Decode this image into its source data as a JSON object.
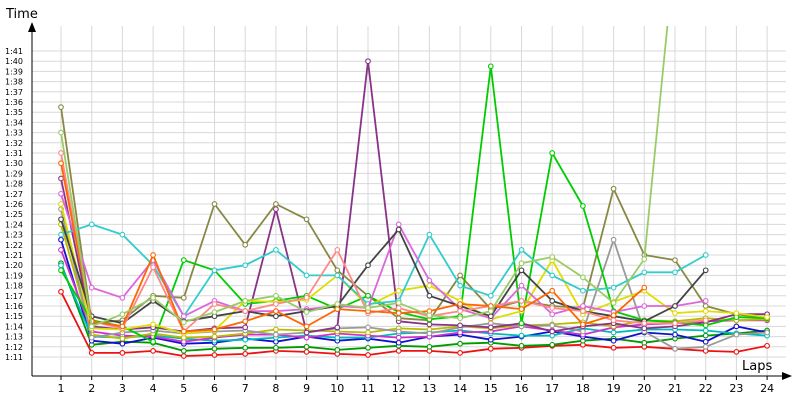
{
  "chart_data": {
    "type": "line",
    "title": "",
    "xlabel": "Laps",
    "ylabel": "Time",
    "grid": true,
    "x_ticks": [
      "1",
      "2",
      "3",
      "4",
      "5",
      "6",
      "7",
      "8",
      "9",
      "10",
      "11",
      "12",
      "13",
      "14",
      "15",
      "16",
      "17",
      "18",
      "19",
      "20",
      "21",
      "22",
      "23",
      "24"
    ],
    "y_ticks": [
      "1:11",
      "1:12",
      "1:13",
      "1:14",
      "1:15",
      "1:16",
      "1:17",
      "1:18",
      "1:19",
      "1:20",
      "1:21",
      "1:22",
      "1:23",
      "1:24",
      "1:25",
      "1:26",
      "1:27",
      "1:28",
      "1:29",
      "1:30",
      "1:31",
      "1:32",
      "1:33",
      "1:34",
      "1:35",
      "1:36",
      "1:37",
      "1:38",
      "1:39",
      "1:40",
      "1:41"
    ],
    "ylim_seconds": [
      70,
      112
    ],
    "series": [
      {
        "color": "#ee1111",
        "values": [
          77.4,
          71.4,
          71.4,
          71.6,
          71.1,
          71.2,
          71.3,
          71.6,
          71.5,
          71.3,
          71.2,
          71.6,
          71.6,
          71.4,
          71.8,
          71.9,
          72.1,
          72.2,
          71.9,
          72.0,
          71.8,
          71.6,
          71.5,
          72.1
        ]
      },
      {
        "color": "#009900",
        "values": [
          80.2,
          72.2,
          72.5,
          72.4,
          71.6,
          71.8,
          71.9,
          71.9,
          72.0,
          71.7,
          71.9,
          72.1,
          72.0,
          72.3,
          72.4,
          72.1,
          72.2,
          72.6,
          72.8,
          72.4,
          72.8,
          73.1,
          73.3,
          73.6
        ]
      },
      {
        "color": "#1111cc",
        "values": [
          82.5,
          72.6,
          72.3,
          72.9,
          72.3,
          72.4,
          72.8,
          72.5,
          73.0,
          72.6,
          72.8,
          72.4,
          73.0,
          73.2,
          72.7,
          73.0,
          73.5,
          73.0,
          72.6,
          73.4,
          73.2,
          72.5,
          74.0,
          73.4
        ]
      },
      {
        "color": "#00bbbb",
        "values": [
          80.0,
          73.0,
          72.9,
          73.1,
          72.8,
          72.6,
          72.7,
          72.9,
          73.1,
          72.9,
          72.9,
          73.3,
          73.4,
          73.6,
          73.3,
          73.1,
          73.1,
          73.8,
          73.4,
          73.7,
          73.7,
          73.6,
          73.3,
          73.1
        ]
      },
      {
        "color": "#cc33cc",
        "values": [
          81.5,
          73.5,
          73.1,
          73.0,
          72.5,
          72.9,
          73.2,
          73.2,
          72.9,
          73.3,
          73.1,
          72.9,
          73.0,
          73.4,
          73.5,
          74.0,
          73.6,
          73.2,
          73.9,
          74.2,
          74.3,
          74.5,
          74.6,
          74.6
        ]
      },
      {
        "color": "#bbbb00",
        "values": [
          84.0,
          73.2,
          72.8,
          73.3,
          72.9,
          73.0,
          73.3,
          73.7,
          73.6,
          73.5,
          73.4,
          73.8,
          73.7,
          74.0,
          73.8,
          74.1,
          74.2,
          74.4,
          74.0,
          74.6,
          74.5,
          74.8,
          74.6,
          74.7
        ]
      },
      {
        "color": "#999999",
        "values": [
          85.5,
          72.9,
          73.4,
          73.6,
          73.3,
          73.5,
          73.6,
          73.2,
          73.4,
          73.8,
          73.9,
          73.5,
          73.3,
          73.9,
          74.3,
          74.0,
          74.1,
          73.5,
          82.5,
          73.5,
          71.8,
          72.0,
          73.2,
          73.4
        ]
      },
      {
        "color": "#883388",
        "values": [
          88.5,
          74.0,
          73.7,
          73.9,
          73.5,
          73.8,
          73.9,
          85.5,
          73.4,
          73.9,
          100.0,
          74.5,
          74.2,
          74.1,
          73.9,
          74.3,
          73.5,
          74.0,
          74.3,
          73.8,
          74.0,
          74.4,
          75.2,
          75.2
        ]
      },
      {
        "color": "#888844",
        "values": [
          95.5,
          74.3,
          74.6,
          77.0,
          76.8,
          86.0,
          82.0,
          86.0,
          84.5,
          79.5,
          77.0,
          74.8,
          74.6,
          79.0,
          75.7,
          76.5,
          76.0,
          75.8,
          87.5,
          81.0,
          80.5,
          76.0,
          75.2,
          74.8
        ]
      },
      {
        "color": "#00cc00",
        "values": [
          79.5,
          74.6,
          74.0,
          72.5,
          80.5,
          79.5,
          76.2,
          76.5,
          77.0,
          75.7,
          77.0,
          75.4,
          74.7,
          75.0,
          99.5,
          74.3,
          91.0,
          85.8,
          75.5,
          74.6,
          74.4,
          74.1,
          74.9,
          74.8
        ]
      },
      {
        "color": "#dddd00",
        "values": [
          86.0,
          73.8,
          73.7,
          74.2,
          73.3,
          73.6,
          76.5,
          76.4,
          76.6,
          79.0,
          76.0,
          77.5,
          78.0,
          76.5,
          74.7,
          75.5,
          80.5,
          75.2,
          76.4,
          77.5,
          75.3,
          75.5,
          75.3,
          74.9
        ]
      },
      {
        "color": "#33cccc",
        "values": [
          83.0,
          84.0,
          83.0,
          80.0,
          75.0,
          79.5,
          80.0,
          81.5,
          79.0,
          79.0,
          76.2,
          76.5,
          83.0,
          78.0,
          77.0,
          81.5,
          79.0,
          77.5,
          77.8,
          79.3,
          79.3,
          81.0,
          null,
          null
        ]
      },
      {
        "color": "#dd66dd",
        "values": [
          87.0,
          77.8,
          76.8,
          80.5,
          75.0,
          76.5,
          75.5,
          75.5,
          75.7,
          76.0,
          75.8,
          84.0,
          78.5,
          75.7,
          74.8,
          78.0,
          75.2,
          76.0,
          75.4,
          76.0,
          76.0,
          76.5,
          null,
          null
        ]
      },
      {
        "color": "#444444",
        "values": [
          84.5,
          75.0,
          74.3,
          76.5,
          74.5,
          75.0,
          75.5,
          75.0,
          75.5,
          76.0,
          80.0,
          83.5,
          77.0,
          76.0,
          75.0,
          79.5,
          76.5,
          75.5,
          75.0,
          74.5,
          76.0,
          79.5,
          null,
          null
        ]
      },
      {
        "color": "#ff8888",
        "values": [
          91.0,
          74.5,
          73.8,
          79.8,
          73.5,
          76.2,
          75.5,
          76.2,
          76.8,
          81.5,
          75.3,
          75.8,
          75.0,
          75.5,
          76.0,
          76.5,
          75.8,
          75.5,
          74.6,
          74.3,
          74.3,
          74.6,
          null,
          null
        ]
      },
      {
        "color": "#ff6600",
        "values": [
          90.0,
          74.5,
          74.0,
          81.0,
          73.5,
          73.7,
          74.5,
          75.5,
          74.0,
          75.7,
          75.5,
          75.3,
          75.5,
          76.2,
          76.0,
          75.7,
          77.5,
          74.2,
          75.1,
          77.8,
          null,
          null,
          null,
          null
        ]
      },
      {
        "color": "#99cc66",
        "values": [
          93.0,
          74.0,
          75.2,
          76.8,
          74.4,
          75.4,
          76.5,
          77.0,
          75.4,
          76.2,
          75.8,
          76.3,
          75.1,
          74.8,
          75.5,
          80.2,
          80.8,
          78.8,
          76.3,
          80.6,
          111.0,
          null,
          null,
          null
        ]
      }
    ]
  }
}
